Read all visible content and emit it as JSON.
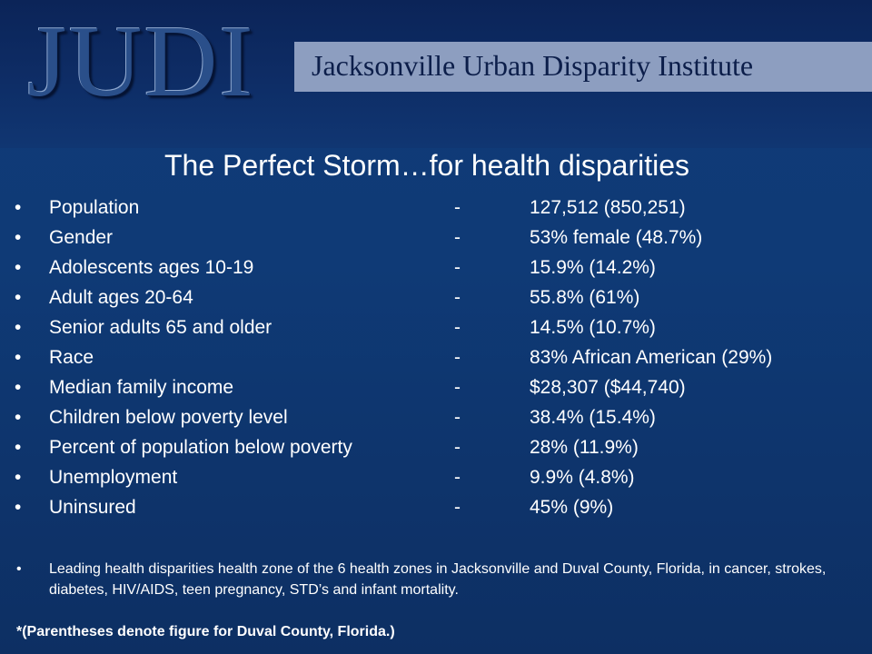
{
  "header": {
    "logo_text": "JUDI",
    "organization": "Jacksonville Urban Disparity Institute"
  },
  "title": "The Perfect Storm…for health disparities",
  "bullet_char": "•",
  "stats": [
    {
      "label": "Population",
      "separator": "-",
      "value": "127,512 (850,251)"
    },
    {
      "label": "Gender",
      "separator": "-",
      "value": "53% female (48.7%)"
    },
    {
      "label": "Adolescents ages 10-19",
      "separator": "-",
      "value": "15.9% (14.2%)"
    },
    {
      "label": "Adult ages 20-64",
      "separator": "-",
      "value": "55.8% (61%)"
    },
    {
      "label": "Senior adults 65 and older",
      "separator": "-",
      "value": "14.5% (10.7%)"
    },
    {
      "label": "Race",
      "separator": "-",
      "value": "83% African American (29%)"
    },
    {
      "label": "Median family income",
      "separator": "-",
      "value": "$28,307 ($44,740)"
    },
    {
      "label": "Children below poverty level",
      "separator": "-",
      "value": "38.4% (15.4%)"
    },
    {
      "label": "Percent of population below poverty",
      "separator": "-",
      "value": "28% (11.9%)"
    },
    {
      "label": "Unemployment",
      "separator": "-",
      "value": "9.9% (4.8%)"
    },
    {
      "label": "Uninsured",
      "separator": "-",
      "value": "45% (9%)"
    }
  ],
  "note": "Leading health disparities health zone of the 6 health zones in Jacksonville and Duval County, Florida, in cancer, strokes, diabetes, HIV/AIDS, teen pregnancy, STD’s and infant mortality.",
  "footnote": "*(Parentheses denote figure for Duval County, Florida.)",
  "colors": {
    "background": "#0f3a76",
    "banner": "#8d9ec0",
    "banner_text": "#0c1e4a",
    "text": "#ffffff"
  }
}
